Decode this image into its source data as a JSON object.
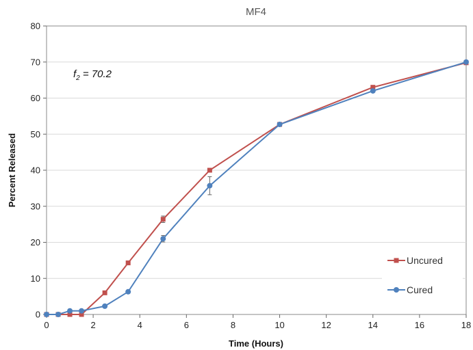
{
  "chart_data": {
    "type": "line",
    "title": "MF4",
    "xlabel": "Time (Hours)",
    "ylabel": "Percent Released",
    "xlim": [
      0,
      18
    ],
    "ylim": [
      0,
      80
    ],
    "xticks": [
      0,
      2,
      4,
      6,
      8,
      10,
      12,
      14,
      16,
      18
    ],
    "yticks": [
      0,
      10,
      20,
      30,
      40,
      50,
      60,
      70,
      80
    ],
    "grid": "horizontal",
    "legend": "bottom-right",
    "annotation": {
      "symbol": "f",
      "subscript": "2",
      "value_text": " = 70.2"
    },
    "series": [
      {
        "name": "Uncured",
        "color": "#C0504D",
        "marker": "square",
        "x": [
          0,
          0.5,
          1,
          1.5,
          2.5,
          3.5,
          5,
          7,
          10,
          14,
          18
        ],
        "y": [
          0,
          0,
          0,
          0,
          6,
          14.3,
          26.4,
          40,
          52.7,
          63,
          69.8
        ],
        "err": [
          0,
          0,
          0,
          0,
          0,
          0,
          0.9,
          0,
          0,
          0,
          0
        ]
      },
      {
        "name": "Cured",
        "color": "#4F81BD",
        "marker": "circle",
        "x": [
          0,
          0.5,
          1,
          1.5,
          2.5,
          3.5,
          5,
          7,
          10,
          14,
          18
        ],
        "y": [
          0,
          0,
          1,
          1,
          2.3,
          6.3,
          21,
          35.7,
          52.7,
          62,
          70
        ],
        "err": [
          0,
          0,
          0,
          0,
          0,
          0,
          0.9,
          2.5,
          0,
          0,
          0
        ]
      }
    ]
  }
}
